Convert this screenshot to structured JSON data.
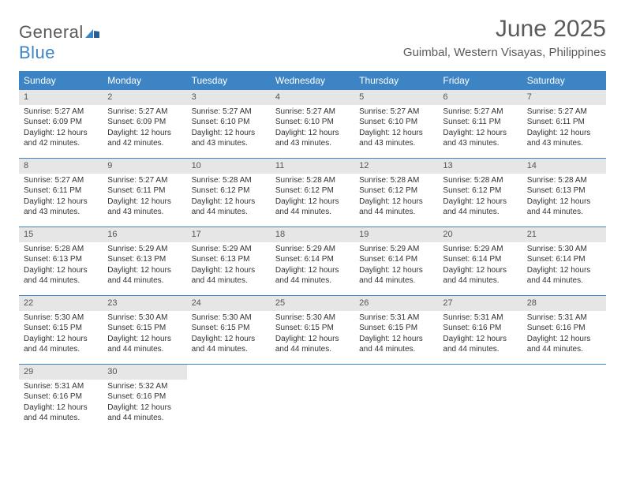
{
  "logo": {
    "general": "General",
    "blue": "Blue"
  },
  "title": "June 2025",
  "location": "Guimbal, Western Visayas, Philippines",
  "colors": {
    "header_bg": "#3d84c4",
    "daynum_bg": "#e6e6e6",
    "text": "#333333",
    "title_text": "#5a5a5a"
  },
  "day_headers": [
    "Sunday",
    "Monday",
    "Tuesday",
    "Wednesday",
    "Thursday",
    "Friday",
    "Saturday"
  ],
  "weeks": [
    [
      {
        "n": "1",
        "sr": "Sunrise: 5:27 AM",
        "ss": "Sunset: 6:09 PM",
        "d1": "Daylight: 12 hours",
        "d2": "and 42 minutes."
      },
      {
        "n": "2",
        "sr": "Sunrise: 5:27 AM",
        "ss": "Sunset: 6:09 PM",
        "d1": "Daylight: 12 hours",
        "d2": "and 42 minutes."
      },
      {
        "n": "3",
        "sr": "Sunrise: 5:27 AM",
        "ss": "Sunset: 6:10 PM",
        "d1": "Daylight: 12 hours",
        "d2": "and 43 minutes."
      },
      {
        "n": "4",
        "sr": "Sunrise: 5:27 AM",
        "ss": "Sunset: 6:10 PM",
        "d1": "Daylight: 12 hours",
        "d2": "and 43 minutes."
      },
      {
        "n": "5",
        "sr": "Sunrise: 5:27 AM",
        "ss": "Sunset: 6:10 PM",
        "d1": "Daylight: 12 hours",
        "d2": "and 43 minutes."
      },
      {
        "n": "6",
        "sr": "Sunrise: 5:27 AM",
        "ss": "Sunset: 6:11 PM",
        "d1": "Daylight: 12 hours",
        "d2": "and 43 minutes."
      },
      {
        "n": "7",
        "sr": "Sunrise: 5:27 AM",
        "ss": "Sunset: 6:11 PM",
        "d1": "Daylight: 12 hours",
        "d2": "and 43 minutes."
      }
    ],
    [
      {
        "n": "8",
        "sr": "Sunrise: 5:27 AM",
        "ss": "Sunset: 6:11 PM",
        "d1": "Daylight: 12 hours",
        "d2": "and 43 minutes."
      },
      {
        "n": "9",
        "sr": "Sunrise: 5:27 AM",
        "ss": "Sunset: 6:11 PM",
        "d1": "Daylight: 12 hours",
        "d2": "and 43 minutes."
      },
      {
        "n": "10",
        "sr": "Sunrise: 5:28 AM",
        "ss": "Sunset: 6:12 PM",
        "d1": "Daylight: 12 hours",
        "d2": "and 44 minutes."
      },
      {
        "n": "11",
        "sr": "Sunrise: 5:28 AM",
        "ss": "Sunset: 6:12 PM",
        "d1": "Daylight: 12 hours",
        "d2": "and 44 minutes."
      },
      {
        "n": "12",
        "sr": "Sunrise: 5:28 AM",
        "ss": "Sunset: 6:12 PM",
        "d1": "Daylight: 12 hours",
        "d2": "and 44 minutes."
      },
      {
        "n": "13",
        "sr": "Sunrise: 5:28 AM",
        "ss": "Sunset: 6:12 PM",
        "d1": "Daylight: 12 hours",
        "d2": "and 44 minutes."
      },
      {
        "n": "14",
        "sr": "Sunrise: 5:28 AM",
        "ss": "Sunset: 6:13 PM",
        "d1": "Daylight: 12 hours",
        "d2": "and 44 minutes."
      }
    ],
    [
      {
        "n": "15",
        "sr": "Sunrise: 5:28 AM",
        "ss": "Sunset: 6:13 PM",
        "d1": "Daylight: 12 hours",
        "d2": "and 44 minutes."
      },
      {
        "n": "16",
        "sr": "Sunrise: 5:29 AM",
        "ss": "Sunset: 6:13 PM",
        "d1": "Daylight: 12 hours",
        "d2": "and 44 minutes."
      },
      {
        "n": "17",
        "sr": "Sunrise: 5:29 AM",
        "ss": "Sunset: 6:13 PM",
        "d1": "Daylight: 12 hours",
        "d2": "and 44 minutes."
      },
      {
        "n": "18",
        "sr": "Sunrise: 5:29 AM",
        "ss": "Sunset: 6:14 PM",
        "d1": "Daylight: 12 hours",
        "d2": "and 44 minutes."
      },
      {
        "n": "19",
        "sr": "Sunrise: 5:29 AM",
        "ss": "Sunset: 6:14 PM",
        "d1": "Daylight: 12 hours",
        "d2": "and 44 minutes."
      },
      {
        "n": "20",
        "sr": "Sunrise: 5:29 AM",
        "ss": "Sunset: 6:14 PM",
        "d1": "Daylight: 12 hours",
        "d2": "and 44 minutes."
      },
      {
        "n": "21",
        "sr": "Sunrise: 5:30 AM",
        "ss": "Sunset: 6:14 PM",
        "d1": "Daylight: 12 hours",
        "d2": "and 44 minutes."
      }
    ],
    [
      {
        "n": "22",
        "sr": "Sunrise: 5:30 AM",
        "ss": "Sunset: 6:15 PM",
        "d1": "Daylight: 12 hours",
        "d2": "and 44 minutes."
      },
      {
        "n": "23",
        "sr": "Sunrise: 5:30 AM",
        "ss": "Sunset: 6:15 PM",
        "d1": "Daylight: 12 hours",
        "d2": "and 44 minutes."
      },
      {
        "n": "24",
        "sr": "Sunrise: 5:30 AM",
        "ss": "Sunset: 6:15 PM",
        "d1": "Daylight: 12 hours",
        "d2": "and 44 minutes."
      },
      {
        "n": "25",
        "sr": "Sunrise: 5:30 AM",
        "ss": "Sunset: 6:15 PM",
        "d1": "Daylight: 12 hours",
        "d2": "and 44 minutes."
      },
      {
        "n": "26",
        "sr": "Sunrise: 5:31 AM",
        "ss": "Sunset: 6:15 PM",
        "d1": "Daylight: 12 hours",
        "d2": "and 44 minutes."
      },
      {
        "n": "27",
        "sr": "Sunrise: 5:31 AM",
        "ss": "Sunset: 6:16 PM",
        "d1": "Daylight: 12 hours",
        "d2": "and 44 minutes."
      },
      {
        "n": "28",
        "sr": "Sunrise: 5:31 AM",
        "ss": "Sunset: 6:16 PM",
        "d1": "Daylight: 12 hours",
        "d2": "and 44 minutes."
      }
    ],
    [
      {
        "n": "29",
        "sr": "Sunrise: 5:31 AM",
        "ss": "Sunset: 6:16 PM",
        "d1": "Daylight: 12 hours",
        "d2": "and 44 minutes."
      },
      {
        "n": "30",
        "sr": "Sunrise: 5:32 AM",
        "ss": "Sunset: 6:16 PM",
        "d1": "Daylight: 12 hours",
        "d2": "and 44 minutes."
      },
      null,
      null,
      null,
      null,
      null
    ]
  ]
}
